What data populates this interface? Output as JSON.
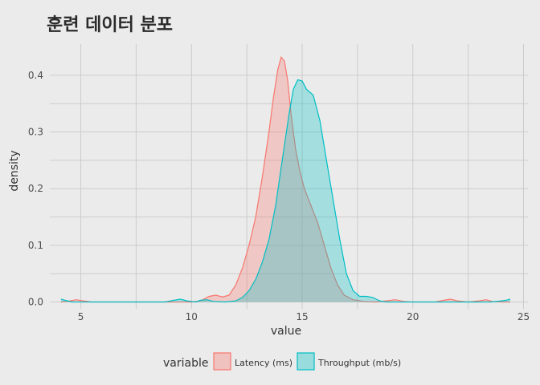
{
  "chart_data": {
    "type": "area",
    "title": "훈련 데이터 분포",
    "xlabel": "value",
    "ylabel": "density",
    "xlim": [
      3.6,
      25.2
    ],
    "ylim": [
      -0.012,
      0.455
    ],
    "x_ticks": [
      5,
      10,
      15,
      20,
      25
    ],
    "x_tick_labels": [
      "5",
      "10",
      "15",
      "20",
      "25"
    ],
    "y_ticks": [
      0.0,
      0.1,
      0.2,
      0.3,
      0.4
    ],
    "y_tick_labels": [
      "0.0",
      "0.1",
      "0.2",
      "0.3",
      "0.4"
    ],
    "grid": true,
    "legend": {
      "title": "variable",
      "position": "bottom"
    },
    "series": [
      {
        "name": "Latency (ms)",
        "color": "#f8766d",
        "x": [
          4.1,
          4.5,
          4.8,
          5.1,
          5.5,
          6,
          8,
          10,
          10.4,
          10.8,
          11.1,
          11.4,
          11.7,
          12,
          12.3,
          12.6,
          12.9,
          13.2,
          13.5,
          13.7,
          13.9,
          14.05,
          14.2,
          14.35,
          14.5,
          14.7,
          14.9,
          15.1,
          15.4,
          15.7,
          16,
          16.3,
          16.6,
          16.9,
          17.3,
          17.8,
          18.3,
          18.8,
          19.2,
          19.6,
          20,
          21,
          21.4,
          21.7,
          22,
          22.5,
          23,
          23.3,
          23.6,
          24,
          24.4
        ],
        "values": [
          0.0,
          0.002,
          0.004,
          0.002,
          0.0,
          0.0,
          0.0,
          0.0,
          0.002,
          0.01,
          0.012,
          0.009,
          0.012,
          0.03,
          0.06,
          0.1,
          0.15,
          0.22,
          0.3,
          0.36,
          0.41,
          0.432,
          0.425,
          0.39,
          0.33,
          0.27,
          0.23,
          0.2,
          0.17,
          0.14,
          0.1,
          0.06,
          0.03,
          0.012,
          0.004,
          0.001,
          0.0,
          0.002,
          0.004,
          0.001,
          0.0,
          0.0,
          0.003,
          0.005,
          0.002,
          0.0,
          0.002,
          0.004,
          0.001,
          0.0,
          0.0
        ]
      },
      {
        "name": "Throughput (mb/s)",
        "color": "#00bfc4",
        "x": [
          4.1,
          4.3,
          4.6,
          5,
          6,
          8.8,
          9.2,
          9.5,
          9.8,
          10.2,
          10.4,
          10.7,
          11,
          11.5,
          12,
          12.3,
          12.6,
          12.9,
          13.2,
          13.5,
          13.8,
          14.1,
          14.4,
          14.6,
          14.8,
          15,
          15.2,
          15.5,
          15.8,
          16.1,
          16.4,
          16.7,
          17,
          17.3,
          17.6,
          17.9,
          18.2,
          18.5,
          18.8,
          19.2,
          20,
          22,
          23.5,
          24,
          24.2,
          24.4
        ],
        "values": [
          0.005,
          0.003,
          0.0,
          0.0,
          0.0,
          0.0,
          0.003,
          0.005,
          0.002,
          0.0,
          0.003,
          0.004,
          0.001,
          0.0,
          0.002,
          0.008,
          0.02,
          0.04,
          0.07,
          0.11,
          0.17,
          0.25,
          0.33,
          0.375,
          0.392,
          0.39,
          0.375,
          0.365,
          0.32,
          0.25,
          0.18,
          0.11,
          0.05,
          0.02,
          0.01,
          0.01,
          0.008,
          0.002,
          0.0,
          0.0,
          0.0,
          0.0,
          0.0,
          0.002,
          0.003,
          0.005
        ]
      }
    ]
  }
}
